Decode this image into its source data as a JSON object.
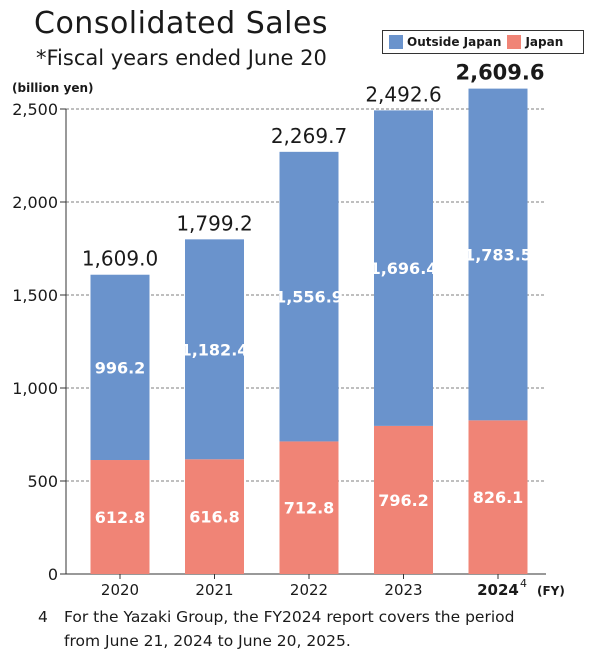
{
  "title": "Consolidated Sales",
  "subtitle": "*Fiscal years ended June 20",
  "legend": {
    "outside_label": "Outside Japan",
    "japan_label": "Japan"
  },
  "colors": {
    "outside": "#6a93cc",
    "japan": "#f08476"
  },
  "footnote": {
    "number": "4",
    "line1": "For the Yazaki Group, the FY2024 report covers the period",
    "line2": "from June 21, 2024 to June 20, 2025."
  },
  "chart_data": {
    "type": "bar",
    "stacked": true,
    "ylabel": "(billion yen)",
    "xlabel": "(FY)",
    "ylim": [
      0,
      2500
    ],
    "yticks": [
      "0",
      "500",
      "1,000",
      "1,500",
      "2,000",
      "2,500"
    ],
    "grid": true,
    "legend": "top-right",
    "categories": [
      "2020",
      "2021",
      "2022",
      "2023",
      "2024"
    ],
    "category_superscript": {
      "2024": "4"
    },
    "series": [
      {
        "name": "Japan",
        "values": [
          612.8,
          616.8,
          712.8,
          796.2,
          826.1
        ],
        "labels": [
          "612.8",
          "616.8",
          "712.8",
          "796.2",
          "826.1"
        ]
      },
      {
        "name": "Outside Japan",
        "values": [
          996.2,
          1182.4,
          1556.9,
          1696.4,
          1783.5
        ],
        "labels": [
          "996.2",
          "1,182.4",
          "1,556.9",
          "1,696.4",
          "1,783.5"
        ]
      }
    ],
    "totals": [
      1609.0,
      1799.2,
      2269.7,
      2492.6,
      2609.6
    ],
    "total_labels": [
      "1,609.0",
      "1,799.2",
      "2,269.7",
      "2,492.6",
      "2,609.6"
    ]
  }
}
